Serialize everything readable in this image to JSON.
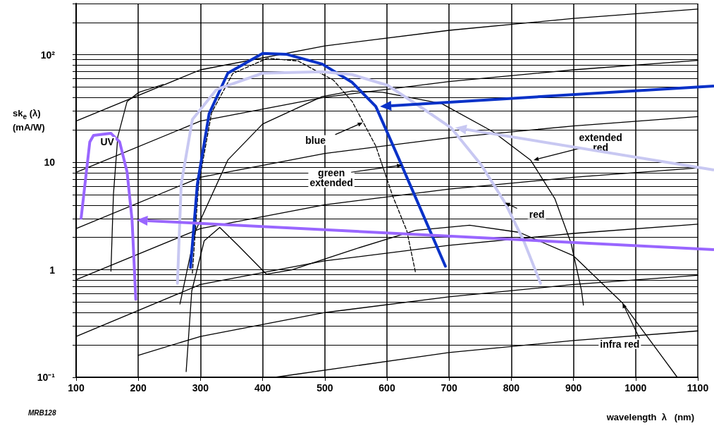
{
  "chart_data": {
    "type": "line",
    "xlabel": "wavelength  λ   (nm)",
    "ylabel": "sk$_{e}$ (λ)\n(mA/W)",
    "xlim": [
      100,
      1100
    ],
    "xticks": [
      100,
      200,
      300,
      400,
      500,
      600,
      700,
      800,
      900,
      1000,
      1100
    ],
    "ylim": [
      0.1,
      300
    ],
    "yticks": [
      {
        "value": 0.1,
        "label": "10⁻¹"
      },
      1,
      10,
      {
        "value": 100,
        "label": "10²"
      }
    ],
    "log": true,
    "grid": true,
    "marker": "none",
    "annotations": [
      "MRB128",
      {
        "text": "UV",
        "x": 150,
        "y": 18
      },
      {
        "text": "blue",
        "x": 561,
        "y": 23.4
      },
      {
        "text": "green\nextended",
        "x": 624,
        "y": 9.4
      },
      {
        "text": "extended\nred",
        "x": 836,
        "y": 10.5
      },
      {
        "text": "red",
        "x": 790,
        "y": 4.2
      },
      {
        "text": "infra red",
        "x": 979,
        "y": 0.49
      }
    ],
    "series": [
      {
        "color": "#000000",
        "x": [
          100,
          300,
          500,
          700,
          900,
          1100
        ],
        "values": [
          24.2,
          72.5,
          121,
          169,
          218,
          266
        ]
      },
      {
        "color": "#000000",
        "x": [
          100,
          300,
          500,
          700,
          900,
          1100
        ],
        "values": [
          8.06,
          24.2,
          40.3,
          56.4,
          72.5,
          88.7
        ]
      },
      {
        "color": "#000000",
        "x": [
          100,
          300,
          500,
          700,
          900,
          1100
        ],
        "values": [
          2.42,
          7.25,
          12.1,
          16.9,
          21.8,
          26.6
        ]
      },
      {
        "color": "#000000",
        "x": [
          100,
          300,
          500,
          700,
          900,
          1100
        ],
        "values": [
          0.81,
          2.42,
          4.03,
          5.64,
          7.25,
          8.87
        ]
      },
      {
        "color": "#000000",
        "x": [
          100,
          300,
          500,
          700,
          900,
          1100
        ],
        "values": [
          0.24,
          0.73,
          1.21,
          1.69,
          2.18,
          2.66
        ]
      },
      {
        "color": "#000000",
        "x": [
          200,
          300,
          500,
          700,
          900,
          1100
        ],
        "values": [
          0.16,
          0.24,
          0.4,
          0.56,
          0.73,
          0.89
        ]
      },
      {
        "color": "#000000",
        "x": [
          420,
          700,
          900,
          1100
        ],
        "values": [
          0.1,
          0.17,
          0.22,
          0.27
        ]
      },
      {
        "color": "#000000",
        "x": [
          156,
          160,
          167,
          182,
          201,
          240
        ],
        "values": [
          0.97,
          5,
          17.3,
          36.8,
          44.8,
          53
        ]
      },
      {
        "color": "#000000",
        "x": [
          277,
          286,
          306,
          331,
          360,
          406,
          447,
          547,
          646,
          733,
          813,
          900,
          979,
          1067
        ],
        "values": [
          0.113,
          0.634,
          1.86,
          2.48,
          1.7,
          0.91,
          1.0,
          1.55,
          2.33,
          2.6,
          2.23,
          1.35,
          0.49,
          0.1
        ]
      },
      {
        "color": "#000000",
        "x": [
          267,
          292,
          344,
          400,
          496,
          544,
          593,
          688,
          771,
          831,
          870,
          896,
          913,
          916
        ],
        "values": [
          0.48,
          2.3,
          10.5,
          22.7,
          40.9,
          46,
          44.8,
          35.2,
          19.2,
          10.5,
          4.6,
          1.78,
          0.64,
          0.47
        ]
      },
      {
        "color": "#000000",
        "line_style": "dashed",
        "x": [
          287,
          297,
          318,
          352,
          408,
          457,
          514,
          544,
          582,
          609,
          632,
          646
        ],
        "values": [
          0.93,
          6.2,
          29,
          67,
          93,
          87.6,
          58,
          36.8,
          14.2,
          4.9,
          2.3,
          0.94
        ]
      },
      {
        "color": "#0a32c8",
        "x": [
          284,
          295,
          314,
          344,
          400,
          439,
          496,
          544,
          582,
          620,
          658,
          694
        ],
        "values": [
          1.05,
          6.25,
          28.4,
          67.5,
          103,
          101,
          82,
          55.4,
          33.1,
          10.5,
          3.26,
          1.08
        ]
      },
      {
        "color": "#c8c8f2",
        "x": [
          263,
          269,
          287,
          326,
          400,
          496,
          544,
          601,
          658,
          703,
          752,
          790,
          820,
          847
        ],
        "values": [
          0.75,
          6.25,
          25,
          47.6,
          67.5,
          69.5,
          65.5,
          52,
          31.6,
          21,
          9.4,
          4.2,
          1.86,
          0.75
        ]
      },
      {
        "color": "#9966ff",
        "x": [
          108,
          122,
          128,
          156,
          170,
          182,
          190,
          196
        ],
        "values": [
          3.02,
          15.5,
          17.8,
          18.6,
          15.5,
          8.1,
          2.9,
          0.53
        ]
      }
    ]
  }
}
